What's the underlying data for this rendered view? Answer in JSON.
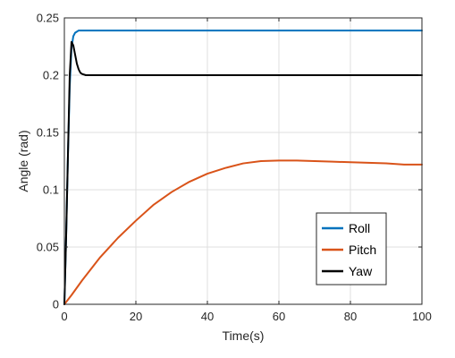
{
  "chart_data": {
    "type": "line",
    "xlabel": "Time(s)",
    "ylabel": "Angle (rad)",
    "xlim": [
      0,
      100
    ],
    "ylim": [
      0,
      0.25
    ],
    "xticks": [
      "0",
      "20",
      "40",
      "60",
      "80",
      "100"
    ],
    "yticks": [
      "0",
      "0.05",
      "0.1",
      "0.15",
      "0.2",
      "0.25"
    ],
    "grid": true,
    "legend_position": "bottom-right",
    "series": [
      {
        "name": "Roll",
        "color": "#0072BD",
        "x": [
          0,
          0.5,
          1,
          1.5,
          2,
          2.5,
          3,
          3.5,
          4,
          5,
          6,
          8,
          10,
          20,
          30,
          40,
          50,
          60,
          70,
          80,
          90,
          100
        ],
        "y": [
          0,
          0.06,
          0.13,
          0.19,
          0.224,
          0.234,
          0.237,
          0.238,
          0.239,
          0.239,
          0.239,
          0.239,
          0.239,
          0.239,
          0.239,
          0.239,
          0.239,
          0.239,
          0.239,
          0.239,
          0.239,
          0.239
        ]
      },
      {
        "name": "Pitch",
        "color": "#D95319",
        "x": [
          0,
          2,
          5,
          10,
          15,
          20,
          25,
          30,
          35,
          40,
          45,
          50,
          55,
          60,
          65,
          70,
          75,
          80,
          85,
          90,
          95,
          100
        ],
        "y": [
          0,
          0.008,
          0.021,
          0.041,
          0.058,
          0.073,
          0.087,
          0.098,
          0.107,
          0.114,
          0.119,
          0.123,
          0.125,
          0.1255,
          0.1255,
          0.125,
          0.1245,
          0.124,
          0.1235,
          0.123,
          0.122,
          0.122
        ]
      },
      {
        "name": "Yaw",
        "color": "#000000",
        "x": [
          0,
          0.5,
          1,
          1.5,
          2,
          2.5,
          3,
          3.5,
          4,
          4.5,
          5,
          6,
          7,
          8,
          10,
          20,
          40,
          60,
          80,
          100
        ],
        "y": [
          0,
          0.06,
          0.13,
          0.2,
          0.229,
          0.226,
          0.218,
          0.21,
          0.205,
          0.202,
          0.201,
          0.2,
          0.2,
          0.2,
          0.2,
          0.2,
          0.2,
          0.2,
          0.2,
          0.2
        ]
      }
    ]
  }
}
